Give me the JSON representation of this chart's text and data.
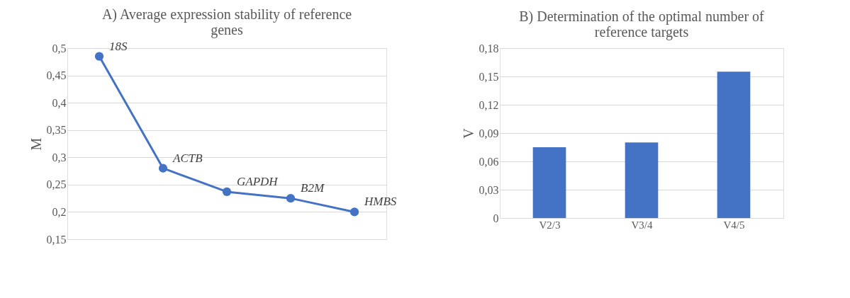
{
  "chart_data": [
    {
      "type": "line",
      "title": "A) Average expression stability of reference genes",
      "ylabel": "M",
      "categories": [
        null,
        null,
        null,
        null,
        null
      ],
      "series": [
        {
          "color": "#4472c4",
          "values": [
            0.485,
            0.28,
            0.237,
            0.225,
            0.2
          ]
        }
      ],
      "ylim": [
        0.15,
        0.5
      ],
      "yticks": [
        {
          "value": 0.15,
          "label": "0,15"
        },
        {
          "value": 0.2,
          "label": "0,2"
        },
        {
          "value": 0.25,
          "label": "0,25"
        },
        {
          "value": 0.3,
          "label": "0,3"
        },
        {
          "value": 0.35,
          "label": "0,35"
        },
        {
          "value": 0.4,
          "label": "0,4"
        },
        {
          "value": 0.45,
          "label": "0,45"
        },
        {
          "value": 0.5,
          "label": "0,5"
        }
      ],
      "annotations": [
        "18S",
        "ACTB",
        "GAPDH",
        "B2M",
        "HMBS"
      ],
      "grid": "y",
      "marker": "circle",
      "line_style": "solid"
    },
    {
      "type": "bar",
      "title": "B) Determination of the optimal number of reference targets",
      "ylabel": "V",
      "categories": [
        "V2/3",
        "V3/4",
        "V4/5"
      ],
      "series": [
        {
          "color": "#4472c4",
          "values": [
            0.075,
            0.08,
            0.155
          ]
        }
      ],
      "ylim": [
        0,
        0.18
      ],
      "yticks": [
        {
          "value": 0,
          "label": "0"
        },
        {
          "value": 0.03,
          "label": "0,03"
        },
        {
          "value": 0.06,
          "label": "0,06"
        },
        {
          "value": 0.09,
          "label": "0,09"
        },
        {
          "value": 0.12,
          "label": "0,12"
        },
        {
          "value": 0.15,
          "label": "0,15"
        },
        {
          "value": 0.18,
          "label": "0,18"
        }
      ],
      "grid": "y"
    }
  ]
}
